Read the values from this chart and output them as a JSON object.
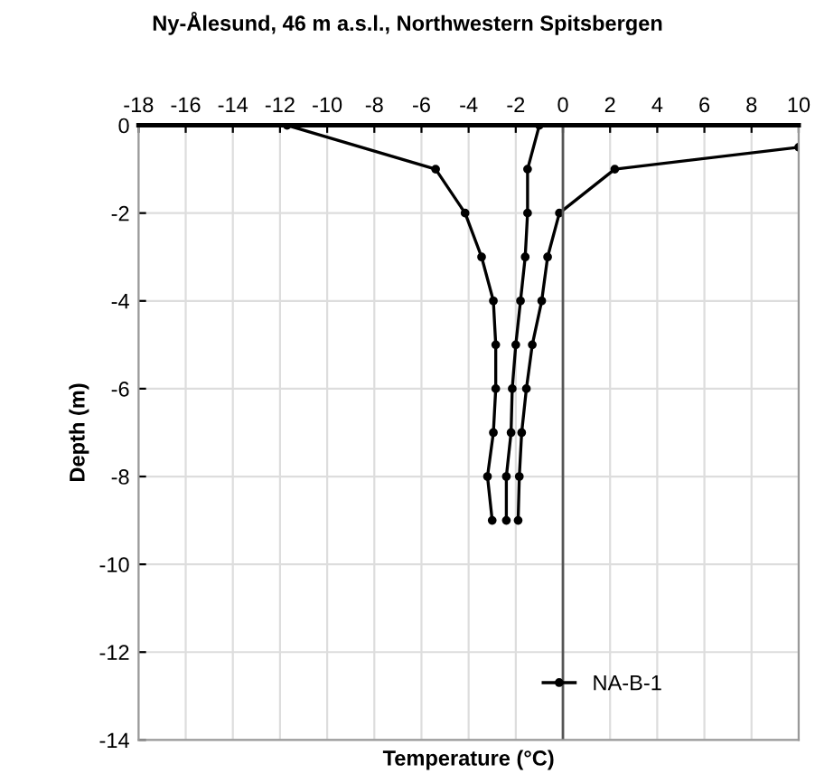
{
  "chart_data": {
    "type": "line",
    "title": "Ny-Ålesund, 46 m a.s.l., Northwestern Spitsbergen",
    "xlabel": "Temperature (°C)",
    "ylabel": "Depth (m)",
    "series": [
      {
        "name": "NA-B-1",
        "color": "#000000",
        "x": [
          -11.7,
          -5.4,
          -4.15,
          -3.45,
          -2.95,
          -2.85,
          -2.85,
          -2.95,
          -3.2,
          -3.0
        ],
        "values": [
          0,
          -1,
          -2,
          -3,
          -4,
          -5,
          -6,
          -7,
          -8,
          -9
        ]
      },
      {
        "color": "#000000",
        "x": [
          -1.0,
          -1.5,
          -1.5,
          -1.6,
          -1.8,
          -2.0,
          -2.15,
          -2.2,
          -2.4,
          -2.4
        ],
        "values": [
          0,
          -1,
          -2,
          -3,
          -4,
          -5,
          -6,
          -7,
          -8,
          -9
        ]
      },
      {
        "color": "#000000",
        "x": [
          10,
          2.2,
          -0.15,
          -0.65,
          -0.9,
          -1.3,
          -1.55,
          -1.75,
          -1.85,
          -1.9
        ],
        "values": [
          -0.5,
          -1,
          -2,
          -3,
          -4,
          -5,
          -6,
          -7,
          -8,
          -9
        ]
      }
    ],
    "xlim": [
      -18,
      10
    ],
    "xticks": [
      -18,
      -16,
      -14,
      -12,
      -10,
      -8,
      -6,
      -4,
      -2,
      0,
      2,
      4,
      6,
      8,
      10
    ],
    "ylim": [
      -14,
      0
    ],
    "yticks": [
      -14,
      -12,
      -10,
      -8,
      -6,
      -4,
      -2,
      0
    ],
    "ref_lines": [
      {
        "axis": "x",
        "value": 0,
        "color": "#555555"
      }
    ],
    "grid": true,
    "legend": "bottom right",
    "marker": "circle",
    "line_style": "solid"
  }
}
